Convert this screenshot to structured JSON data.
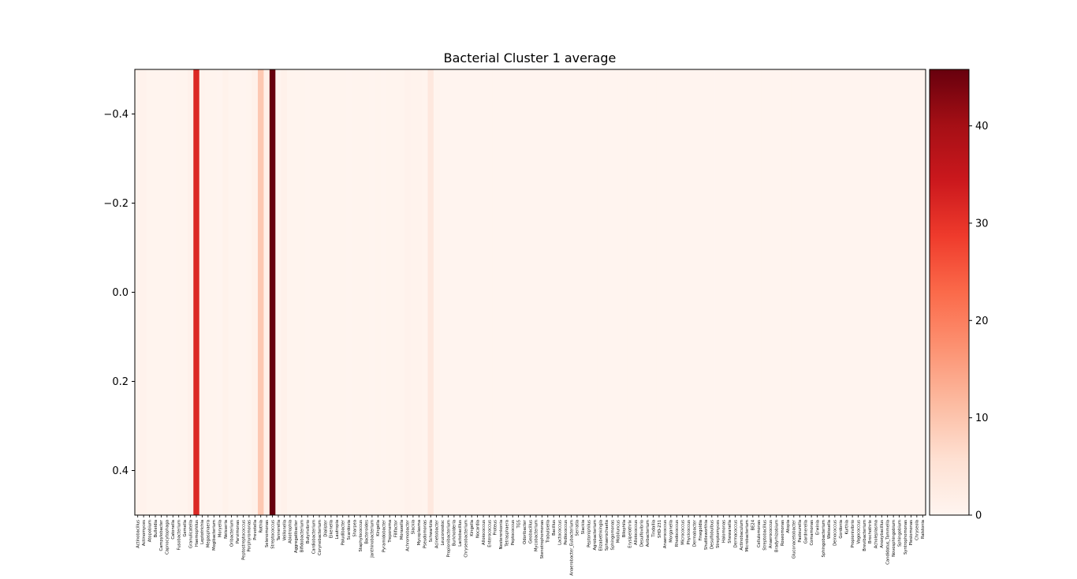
{
  "chart_data": {
    "type": "heatmap",
    "title": "Bacterial Cluster 1 average",
    "xlabel": "",
    "ylabel": "",
    "colormap": "Reds",
    "ylim": [
      0.5,
      -0.5
    ],
    "y_ticks": [
      -0.4,
      -0.2,
      0.0,
      0.2,
      0.4
    ],
    "y_tick_labels": [
      "−0.4",
      "−0.2",
      "0.0",
      "0.2",
      "0.4"
    ],
    "colorbar": {
      "range": [
        0,
        45.8
      ],
      "ticks": [
        0,
        10,
        20,
        30,
        40
      ],
      "tick_labels": [
        "0",
        "10",
        "20",
        "30",
        "40"
      ]
    },
    "categories": [
      "Actinobacillus",
      "Actinomyces",
      "Atopobium",
      "Bulleidia",
      "Campylobacter",
      "Capnocytophaga",
      "Catonella",
      "Fusobacterium",
      "Gemella",
      "Granulicatella",
      "Haemophilus",
      "Leptotrichia",
      "Megasphaera",
      "Mogibacterium",
      "Moryella",
      "Neisseria",
      "Oribacterium",
      "Parvimonas",
      "Peptostreptococcus",
      "Porphyromonas",
      "Prevotella",
      "Rothia",
      "Selenomonas",
      "Streptococcus",
      "Tannerella",
      "Veillonella",
      "Abiotrophia",
      "Aggregatibacter",
      "Bifidobacterium",
      "Butyrivibrio",
      "Cardiobacterium",
      "Corynebacterium",
      "Dialister",
      "Eikenella",
      "Lautropia",
      "Paludibacter",
      "Scardovia",
      "Sharpea",
      "Staphylococcus",
      "Bacteroides",
      "Janthinobacterium",
      "Kingella",
      "Pyramidobacter",
      "Treponema",
      "Filifactor",
      "Moraxella",
      "Achromobacter",
      "Slackia",
      "Mycoplasma",
      "Pseudomonas",
      "Schwartzia",
      "Acinetobacter",
      "Leuconostoc",
      "Propionibacterium",
      "Burkholderia",
      "Lactobacillus",
      "Chryseobacterium",
      "Kingella",
      "Nocardia",
      "Alloiococcus",
      "Enterococcus",
      "Proteus",
      "Nesterenkonia",
      "Tetrasphaera",
      "Peptococcus",
      "TG5",
      "Odoribacter",
      "Geobacillus",
      "Mycobacterium",
      "Stenotrophomonas",
      "Trabulsiella",
      "Bacillus",
      "Lactococcus",
      "Pediococcus",
      "Anaerobacter_Eubacterium",
      "Serratia",
      "Slackia",
      "Peptoniphilus",
      "Agrobacterium",
      "Elizabethkingia",
      "Sphaerochaeta",
      "Sphingomonas",
      "Mobiluncus",
      "Bilophila",
      "Erysipelothrix",
      "Alloiococcus",
      "Desulfovibrio",
      "Avibacterium",
      "Tindallia",
      "SHD-231",
      "Anaerococcus",
      "Morganella",
      "Rhodococcus",
      "Micrococcus",
      "Phycicoccus",
      "Dermabacter",
      "Finegoldia",
      "Shuttleworthia",
      "Desulfobulbus",
      "Streptomyces",
      "Halomonas",
      "Shewanella",
      "Dermacoccus",
      "Actinobaculum",
      "Microbacterium",
      "BE24",
      "Cellulomonas",
      "Streptobacillus",
      "Anaerococcus",
      "Bradyrhizobium",
      "Roseomonas",
      "Atopia",
      "Gluconacetobacter",
      "Pasteurella",
      "Gardnerella",
      "Comamonas",
      "Erwinia",
      "Sphingobacterium",
      "Weissella",
      "Deinococcus",
      "Gordonia",
      "Kurthia",
      "Propionivibrio",
      "Vagococcus",
      "Brevibacterium",
      "Brochothrix",
      "Acholeplasma",
      "Anoxybacillus",
      "Candidatus_Tammella",
      "Novosphingobium",
      "Sphingobium",
      "Syntrophomonas",
      "Plesiomonas",
      "Chryseola",
      "Ralstonia"
    ],
    "values": [
      0.5,
      0.8,
      0.4,
      0.3,
      0.3,
      0.3,
      0.2,
      0.4,
      0.3,
      1.0,
      31.8,
      0.6,
      0.4,
      0.3,
      0.2,
      0.9,
      0.3,
      0.3,
      0.2,
      0.3,
      1.2,
      9.5,
      1.5,
      45.8,
      0.6,
      1.2,
      0.3,
      0.3,
      0.3,
      0.2,
      0.3,
      0.3,
      0.3,
      0.3,
      0.3,
      0.3,
      0.2,
      0.3,
      0.3,
      0.3,
      0.2,
      0.3,
      0.2,
      0.3,
      0.3,
      0.3,
      0.8,
      0.5,
      0.6,
      0.4,
      3.5,
      0.3,
      0.2,
      0.2,
      0.2,
      0.2,
      0.2,
      0.2,
      0.2,
      0.2,
      0.2,
      0.2,
      0.2,
      0.2,
      0.2,
      0.2,
      0.2,
      0.2,
      0.2,
      0.2,
      0.2,
      0.2,
      0.2,
      0.2,
      0.2,
      0.2,
      0.2,
      0.2,
      0.2,
      0.2,
      0.2,
      0.2,
      0.2,
      0.2,
      0.2,
      0.2,
      0.2,
      0.2,
      0.2,
      0.2,
      0.2,
      0.2,
      0.2,
      0.2,
      0.2,
      0.2,
      0.2,
      0.2,
      0.2,
      0.2,
      0.2,
      0.2,
      0.2,
      0.2,
      0.2,
      0.2,
      0.2,
      0.2,
      0.2,
      0.2,
      0.2,
      0.2,
      0.2,
      0.2,
      0.2,
      0.2,
      0.2,
      0.2,
      0.2,
      0.2,
      0.2,
      0.2,
      0.2,
      0.2,
      0.2,
      0.2,
      0.2,
      0.2,
      0.2,
      0.2,
      0.2,
      0.2,
      0.2,
      0.2,
      0.2
    ]
  }
}
